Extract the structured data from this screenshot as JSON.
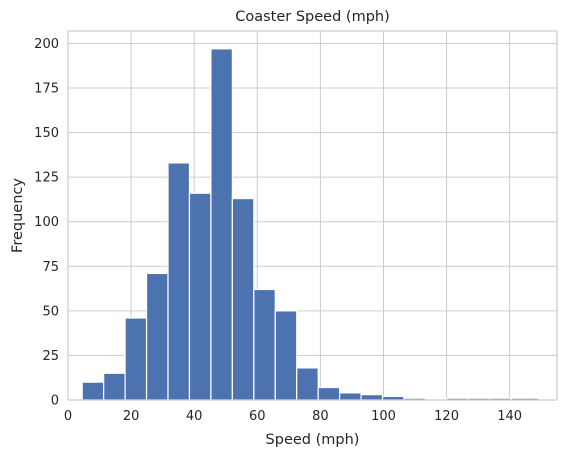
{
  "chart_data": {
    "type": "bar",
    "title": "Coaster Speed (mph)",
    "xlabel": "Speed (mph)",
    "ylabel": "Frequency",
    "xlim": [
      0,
      155
    ],
    "ylim": [
      0,
      207
    ],
    "xticks": [
      0,
      20,
      40,
      60,
      80,
      100,
      120,
      140
    ],
    "yticks": [
      0,
      25,
      50,
      75,
      100,
      125,
      150,
      175,
      200
    ],
    "grid": true,
    "bin_edges": [
      4.5,
      11.3,
      18.1,
      24.9,
      31.7,
      38.5,
      45.3,
      52.1,
      58.9,
      65.7,
      72.5,
      79.3,
      86.1,
      92.9,
      99.7,
      106.5,
      113.3,
      120.1,
      126.9,
      133.7,
      140.5,
      149.1
    ],
    "counts": [
      10,
      15,
      46,
      71,
      133,
      116,
      197,
      113,
      62,
      50,
      18,
      7,
      4,
      3,
      2,
      1,
      0,
      1,
      1,
      1,
      1
    ],
    "color": "#4c72b0"
  }
}
